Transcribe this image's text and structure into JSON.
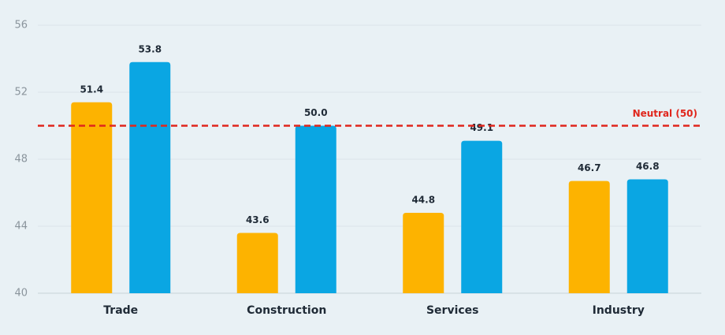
{
  "chart_data": {
    "type": "bar",
    "categories": [
      "Trade",
      "Construction",
      "Services",
      "Industry"
    ],
    "series": [
      {
        "color": "#fdb300",
        "values": [
          51.4,
          43.6,
          44.8,
          46.7
        ],
        "value_labels": [
          "51.4",
          "43.6",
          "44.8",
          "46.7"
        ]
      },
      {
        "color": "#0aa6e3",
        "values": [
          53.8,
          50.0,
          49.1,
          46.8
        ],
        "value_labels": [
          "53.8",
          "50.0",
          "49.1",
          "46.8"
        ]
      }
    ],
    "ylim": [
      40,
      56
    ],
    "yticks": [
      40,
      44,
      48,
      52,
      56
    ],
    "grid": true,
    "reference_line": {
      "value": 50,
      "label": "Neutral (50)",
      "color": "#e0261c"
    }
  }
}
